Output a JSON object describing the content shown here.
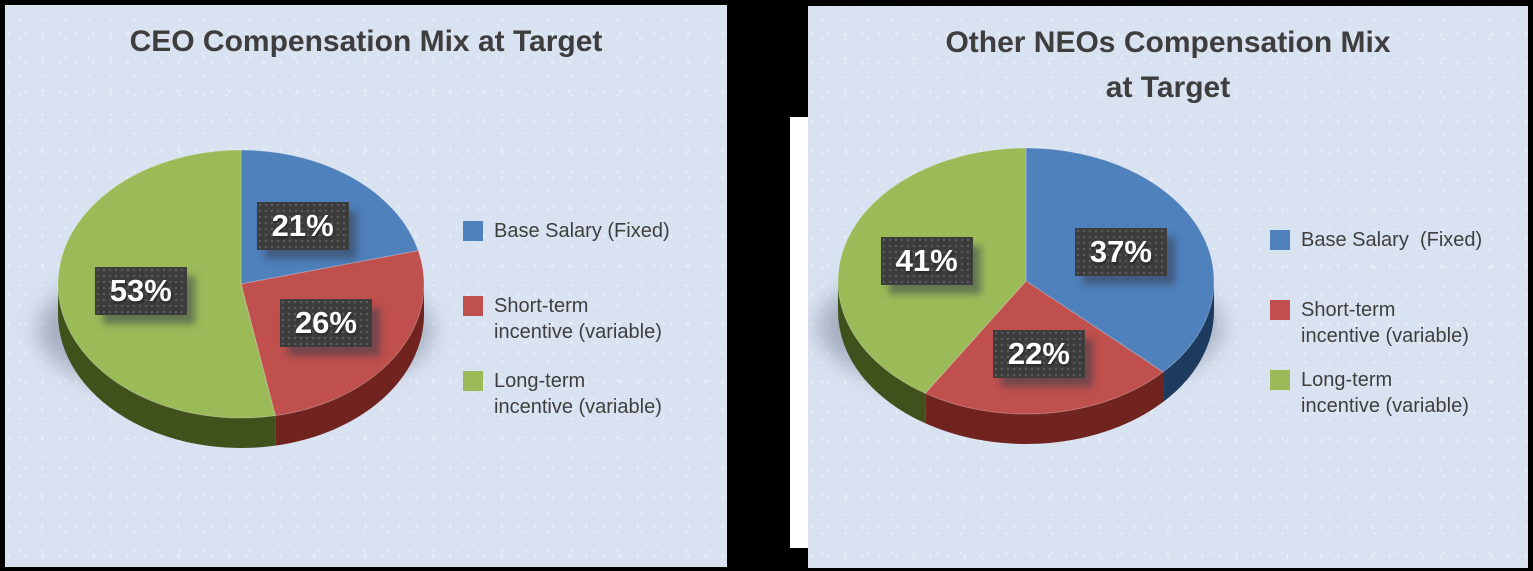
{
  "page": {
    "background_color": "#000000",
    "panel_color": "#D9E2F1",
    "text_color": "#3E3E3E",
    "label_box_color": "#3C3C3C",
    "gap_strip_color": "#FFFFFF"
  },
  "chart_data": [
    {
      "type": "pie",
      "effect": "3d",
      "title": "CEO Compensation Mix at Target",
      "title_lines": [
        "CEO Compensation Mix at Target"
      ],
      "unit": "%",
      "legend_position": "right",
      "categories": [
        "Base Salary (Fixed)",
        "Short-term incentive (variable)",
        "Long-term incentive (variable)"
      ],
      "values": [
        21,
        26,
        53
      ],
      "data_labels": [
        "21%",
        "26%",
        "53%"
      ],
      "colors": [
        "#4F81BD",
        "#C0504D",
        "#9BBB59"
      ],
      "side_colors": [
        "#1D3A5F",
        "#71241F",
        "#41511B"
      ],
      "legend_lines": [
        [
          "Base Salary (Fixed)"
        ],
        [
          "Short-term",
          "incentive (variable)"
        ],
        [
          "Long-term",
          "incentive (variable)"
        ]
      ]
    },
    {
      "type": "pie",
      "effect": "3d",
      "title": "Other NEOs Compensation Mix at Target",
      "title_lines": [
        "Other NEOs Compensation Mix",
        "at Target"
      ],
      "unit": "%",
      "legend_position": "right",
      "categories": [
        "Base Salary (Fixed)",
        "Short-term incentive (variable)",
        "Long-term incentive (variable)"
      ],
      "values": [
        37,
        22,
        41
      ],
      "data_labels": [
        "37%",
        "22%",
        "41%"
      ],
      "colors": [
        "#4F81BD",
        "#C0504D",
        "#9BBB59"
      ],
      "side_colors": [
        "#1D3A5F",
        "#71241F",
        "#41511B"
      ],
      "legend_lines": [
        [
          "Base Salary  (Fixed)"
        ],
        [
          "Short-term",
          "incentive (variable)"
        ],
        [
          "Long-term",
          "incentive (variable)"
        ]
      ]
    }
  ]
}
